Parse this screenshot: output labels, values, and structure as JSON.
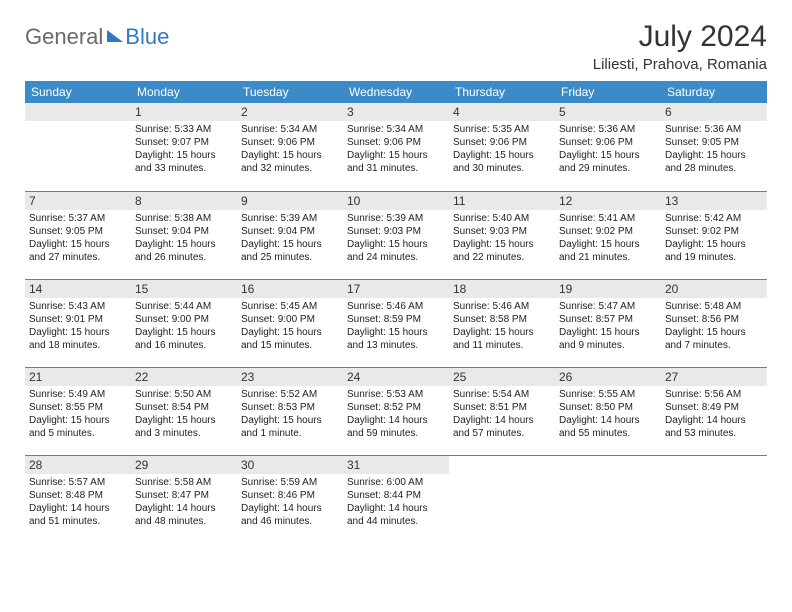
{
  "brand": {
    "part1": "General",
    "part2": "Blue"
  },
  "title": "July 2024",
  "location": "Liliesti, Prahova, Romania",
  "colors": {
    "header_bg": "#3b8bc8",
    "header_fg": "#ffffff",
    "daynum_bg": "#e9e9e9",
    "border": "#3b8bc8",
    "text": "#222222",
    "brand_gray": "#6a6a6a",
    "brand_blue": "#2f7ac0"
  },
  "day_names": [
    "Sunday",
    "Monday",
    "Tuesday",
    "Wednesday",
    "Thursday",
    "Friday",
    "Saturday"
  ],
  "weeks": [
    [
      {
        "n": "",
        "lines": []
      },
      {
        "n": "1",
        "lines": [
          "Sunrise: 5:33 AM",
          "Sunset: 9:07 PM",
          "Daylight: 15 hours",
          "and 33 minutes."
        ]
      },
      {
        "n": "2",
        "lines": [
          "Sunrise: 5:34 AM",
          "Sunset: 9:06 PM",
          "Daylight: 15 hours",
          "and 32 minutes."
        ]
      },
      {
        "n": "3",
        "lines": [
          "Sunrise: 5:34 AM",
          "Sunset: 9:06 PM",
          "Daylight: 15 hours",
          "and 31 minutes."
        ]
      },
      {
        "n": "4",
        "lines": [
          "Sunrise: 5:35 AM",
          "Sunset: 9:06 PM",
          "Daylight: 15 hours",
          "and 30 minutes."
        ]
      },
      {
        "n": "5",
        "lines": [
          "Sunrise: 5:36 AM",
          "Sunset: 9:06 PM",
          "Daylight: 15 hours",
          "and 29 minutes."
        ]
      },
      {
        "n": "6",
        "lines": [
          "Sunrise: 5:36 AM",
          "Sunset: 9:05 PM",
          "Daylight: 15 hours",
          "and 28 minutes."
        ]
      }
    ],
    [
      {
        "n": "7",
        "lines": [
          "Sunrise: 5:37 AM",
          "Sunset: 9:05 PM",
          "Daylight: 15 hours",
          "and 27 minutes."
        ]
      },
      {
        "n": "8",
        "lines": [
          "Sunrise: 5:38 AM",
          "Sunset: 9:04 PM",
          "Daylight: 15 hours",
          "and 26 minutes."
        ]
      },
      {
        "n": "9",
        "lines": [
          "Sunrise: 5:39 AM",
          "Sunset: 9:04 PM",
          "Daylight: 15 hours",
          "and 25 minutes."
        ]
      },
      {
        "n": "10",
        "lines": [
          "Sunrise: 5:39 AM",
          "Sunset: 9:03 PM",
          "Daylight: 15 hours",
          "and 24 minutes."
        ]
      },
      {
        "n": "11",
        "lines": [
          "Sunrise: 5:40 AM",
          "Sunset: 9:03 PM",
          "Daylight: 15 hours",
          "and 22 minutes."
        ]
      },
      {
        "n": "12",
        "lines": [
          "Sunrise: 5:41 AM",
          "Sunset: 9:02 PM",
          "Daylight: 15 hours",
          "and 21 minutes."
        ]
      },
      {
        "n": "13",
        "lines": [
          "Sunrise: 5:42 AM",
          "Sunset: 9:02 PM",
          "Daylight: 15 hours",
          "and 19 minutes."
        ]
      }
    ],
    [
      {
        "n": "14",
        "lines": [
          "Sunrise: 5:43 AM",
          "Sunset: 9:01 PM",
          "Daylight: 15 hours",
          "and 18 minutes."
        ]
      },
      {
        "n": "15",
        "lines": [
          "Sunrise: 5:44 AM",
          "Sunset: 9:00 PM",
          "Daylight: 15 hours",
          "and 16 minutes."
        ]
      },
      {
        "n": "16",
        "lines": [
          "Sunrise: 5:45 AM",
          "Sunset: 9:00 PM",
          "Daylight: 15 hours",
          "and 15 minutes."
        ]
      },
      {
        "n": "17",
        "lines": [
          "Sunrise: 5:46 AM",
          "Sunset: 8:59 PM",
          "Daylight: 15 hours",
          "and 13 minutes."
        ]
      },
      {
        "n": "18",
        "lines": [
          "Sunrise: 5:46 AM",
          "Sunset: 8:58 PM",
          "Daylight: 15 hours",
          "and 11 minutes."
        ]
      },
      {
        "n": "19",
        "lines": [
          "Sunrise: 5:47 AM",
          "Sunset: 8:57 PM",
          "Daylight: 15 hours",
          "and 9 minutes."
        ]
      },
      {
        "n": "20",
        "lines": [
          "Sunrise: 5:48 AM",
          "Sunset: 8:56 PM",
          "Daylight: 15 hours",
          "and 7 minutes."
        ]
      }
    ],
    [
      {
        "n": "21",
        "lines": [
          "Sunrise: 5:49 AM",
          "Sunset: 8:55 PM",
          "Daylight: 15 hours",
          "and 5 minutes."
        ]
      },
      {
        "n": "22",
        "lines": [
          "Sunrise: 5:50 AM",
          "Sunset: 8:54 PM",
          "Daylight: 15 hours",
          "and 3 minutes."
        ]
      },
      {
        "n": "23",
        "lines": [
          "Sunrise: 5:52 AM",
          "Sunset: 8:53 PM",
          "Daylight: 15 hours",
          "and 1 minute."
        ]
      },
      {
        "n": "24",
        "lines": [
          "Sunrise: 5:53 AM",
          "Sunset: 8:52 PM",
          "Daylight: 14 hours",
          "and 59 minutes."
        ]
      },
      {
        "n": "25",
        "lines": [
          "Sunrise: 5:54 AM",
          "Sunset: 8:51 PM",
          "Daylight: 14 hours",
          "and 57 minutes."
        ]
      },
      {
        "n": "26",
        "lines": [
          "Sunrise: 5:55 AM",
          "Sunset: 8:50 PM",
          "Daylight: 14 hours",
          "and 55 minutes."
        ]
      },
      {
        "n": "27",
        "lines": [
          "Sunrise: 5:56 AM",
          "Sunset: 8:49 PM",
          "Daylight: 14 hours",
          "and 53 minutes."
        ]
      }
    ],
    [
      {
        "n": "28",
        "lines": [
          "Sunrise: 5:57 AM",
          "Sunset: 8:48 PM",
          "Daylight: 14 hours",
          "and 51 minutes."
        ]
      },
      {
        "n": "29",
        "lines": [
          "Sunrise: 5:58 AM",
          "Sunset: 8:47 PM",
          "Daylight: 14 hours",
          "and 48 minutes."
        ]
      },
      {
        "n": "30",
        "lines": [
          "Sunrise: 5:59 AM",
          "Sunset: 8:46 PM",
          "Daylight: 14 hours",
          "and 46 minutes."
        ]
      },
      {
        "n": "31",
        "lines": [
          "Sunrise: 6:00 AM",
          "Sunset: 8:44 PM",
          "Daylight: 14 hours",
          "and 44 minutes."
        ]
      },
      {
        "n": "",
        "lines": []
      },
      {
        "n": "",
        "lines": []
      },
      {
        "n": "",
        "lines": []
      }
    ]
  ]
}
